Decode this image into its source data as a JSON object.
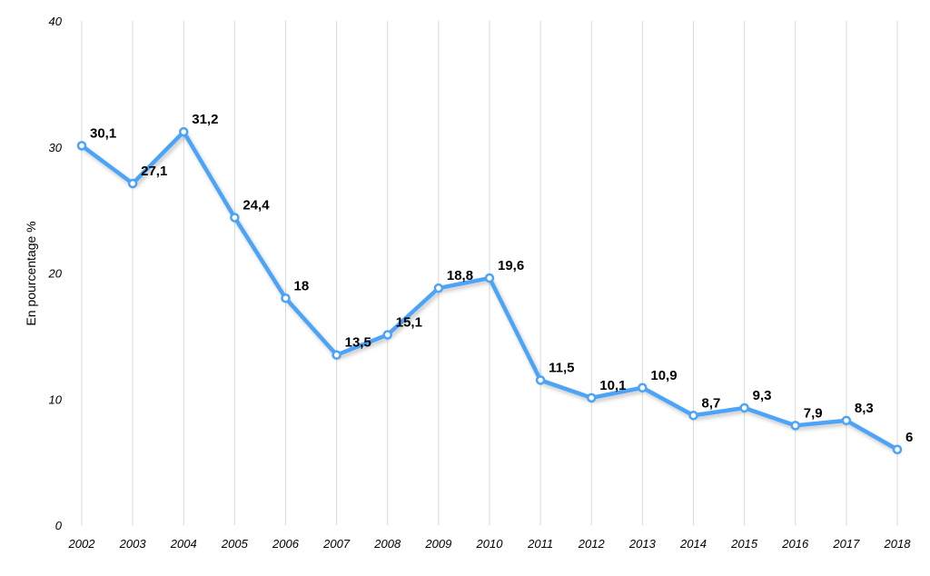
{
  "chart_data": {
    "type": "line",
    "title": "",
    "xlabel": "",
    "ylabel": "En pourcentage %",
    "ylim": [
      0,
      40
    ],
    "yticks": [
      "0",
      "10",
      "20",
      "30",
      "40"
    ],
    "grid": "vertical",
    "legend": "none",
    "categories": [
      "2002",
      "2003",
      "2004",
      "2005",
      "2006",
      "2007",
      "2008",
      "2009",
      "2010",
      "2011",
      "2012",
      "2013",
      "2014",
      "2015",
      "2016",
      "2017",
      "2018"
    ],
    "series": [
      {
        "values": [
          30.1,
          27.1,
          31.2,
          24.4,
          18,
          13.5,
          15.1,
          18.8,
          19.6,
          11.5,
          10.1,
          10.9,
          8.7,
          9.3,
          7.9,
          8.3,
          6
        ],
        "labels": [
          "30,1",
          "27,1",
          "31,2",
          "24,4",
          "18",
          "13,5",
          "15,1",
          "18,8",
          "19,6",
          "11,5",
          "10,1",
          "10,9",
          "8,7",
          "9,3",
          "7,9",
          "8,3",
          "6"
        ],
        "color": "#4da3f5"
      }
    ]
  }
}
